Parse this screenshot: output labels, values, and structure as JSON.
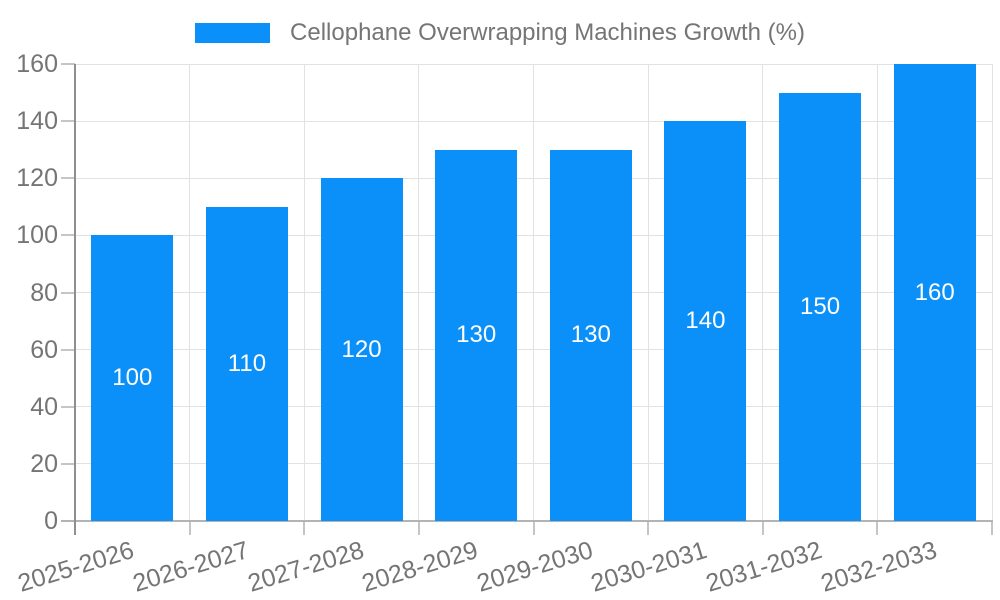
{
  "chart_data": {
    "type": "bar",
    "title": "Cellophane Overwrapping Machines Growth (%)",
    "categories": [
      "2025-2026",
      "2026-2027",
      "2027-2028",
      "2028-2029",
      "2029-2030",
      "2030-2031",
      "2031-2032",
      "2032-2033"
    ],
    "values": [
      100,
      110,
      120,
      130,
      130,
      140,
      150,
      160
    ],
    "bar_value_labels": [
      "100",
      "110",
      "120",
      "130",
      "130",
      "140",
      "150",
      "160"
    ],
    "xlabel": "",
    "ylabel": "",
    "ylim": [
      0,
      160
    ],
    "yticks": [
      0,
      20,
      40,
      60,
      80,
      100,
      120,
      140,
      160
    ],
    "grid": true,
    "legend_position": "top-center",
    "x_label_rotation_deg": -17,
    "style": {
      "background": "#ffffff",
      "bar_color": "#0a90f8",
      "bar_label_color": "#ffffff",
      "text_color": "#757575",
      "grid_color": "#e2e2e2",
      "y_axis_color": "#8f8f8f",
      "x_axis_color": "#b3b3b3",
      "tick_color": "#c5c5c5"
    }
  }
}
